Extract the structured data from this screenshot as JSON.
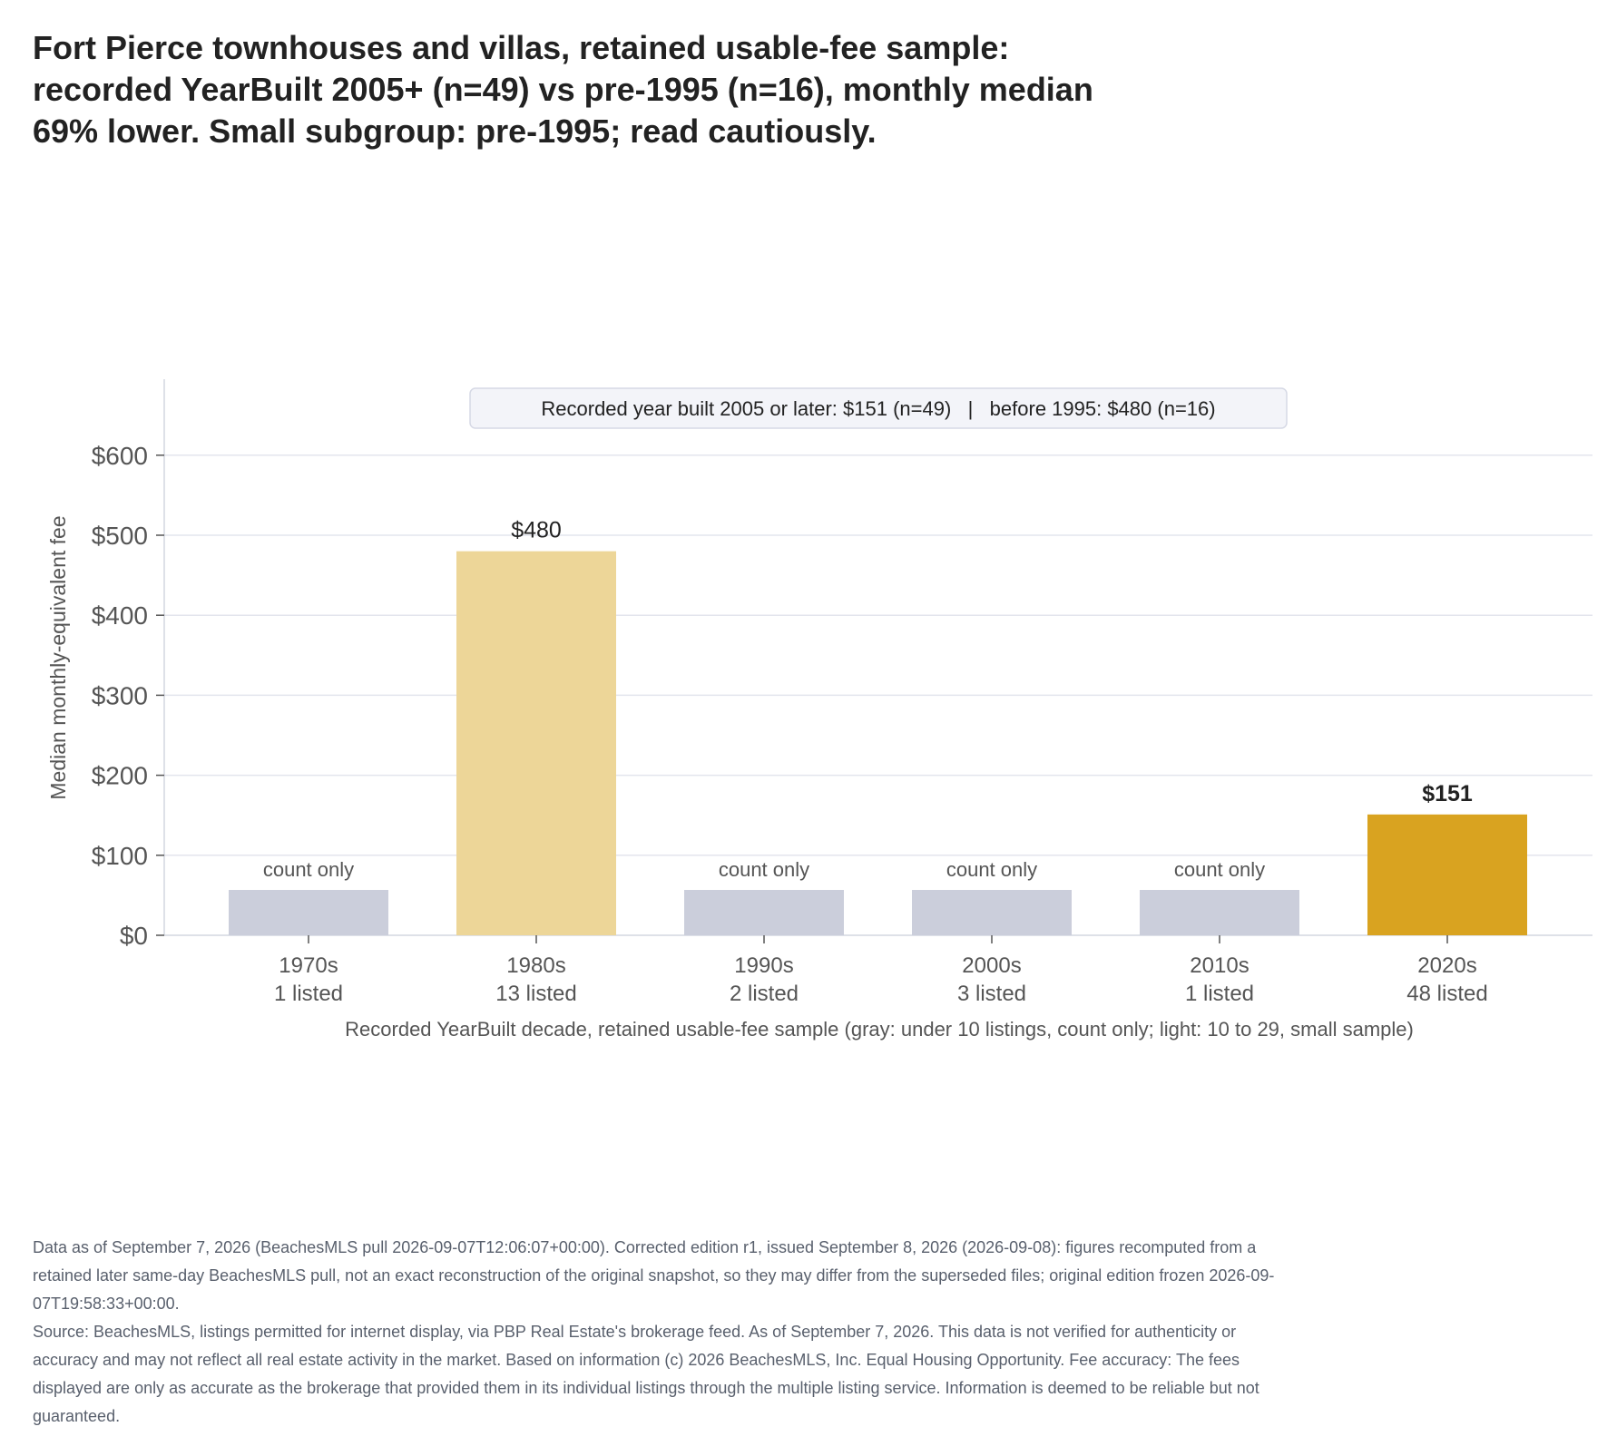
{
  "title_lines": [
    "Fort Pierce townhouses and villas, retained usable-fee sample:",
    "recorded YearBuilt 2005+ (n=49) vs pre-1995 (n=16), monthly median",
    "69% lower. Small subgroup: pre-1995; read cautiously."
  ],
  "annotation": "Recorded year built 2005 or later: $151 (n=49)   |   before 1995: $480 (n=16)",
  "footnote": [
    "Data as of September 7, 2026 (BeachesMLS pull 2026-09-07T12:06:07+00:00). Corrected edition r1, issued September 8, 2026 (2026-09-08): figures recomputed from a retained later same-day BeachesMLS pull, not an exact reconstruction of the original snapshot, so they may differ from the superseded files; original edition frozen 2026-09-07T19:58:33+00:00.",
    "Source: BeachesMLS, listings permitted for internet display, via PBP Real Estate's brokerage feed. As of September 7, 2026. This data is not verified for authenticity or accuracy and may not reflect all real estate activity in the market. Based on information (c) 2026 BeachesMLS, Inc. Equal Housing Opportunity. Fee accuracy: The fees displayed are only as accurate as the brokerage that provided them in its individual listings through the multiple listing service. Information is deemed to be reliable but not guaranteed."
  ],
  "colors": {
    "count_only": "#cbcedb",
    "small_sample": "#edd698",
    "highlight": "#d9a320",
    "grid": "#e3e5ed",
    "axis": "#d4d7e0",
    "text": "#222222",
    "muted": "#555555"
  },
  "chart_data": {
    "type": "bar",
    "xlabel": "Recorded YearBuilt decade, retained usable-fee sample (gray: under 10 listings, count only; light: 10 to 29, small sample)",
    "ylabel": "Median monthly-equivalent fee",
    "ylim": [
      0,
      600
    ],
    "yticks": [
      "$0",
      "$100",
      "$200",
      "$300",
      "$400",
      "$500",
      "$600"
    ],
    "grid": true,
    "categories": [
      "1970s",
      "1980s",
      "1990s",
      "2000s",
      "2010s",
      "2020s"
    ],
    "counts": [
      "1 listed",
      "13 listed",
      "2 listed",
      "3 listed",
      "1 listed",
      "48 listed"
    ],
    "values": [
      null,
      480,
      null,
      null,
      null,
      151
    ],
    "bar_labels": [
      "count only",
      "$480",
      "count only",
      "count only",
      "count only",
      "$151"
    ],
    "groups": [
      "count_only",
      "small_sample",
      "count_only",
      "count_only",
      "count_only",
      "highlight"
    ]
  }
}
